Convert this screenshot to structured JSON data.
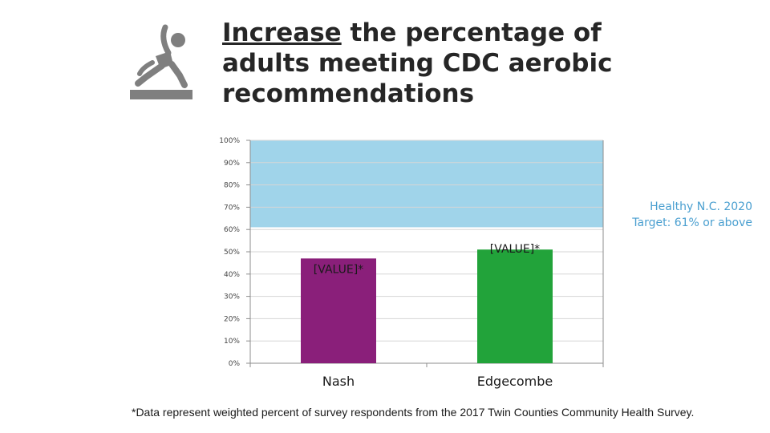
{
  "title": {
    "emphasis": "Increase",
    "rest": " the percentage of adults meeting CDC aerobic recommendations"
  },
  "icon": "stretching-person-icon",
  "target_box": {
    "line1": "Healthy N.C. 2020",
    "line2": "Target: 61% or above",
    "color": "#a0d4ea"
  },
  "footnote": "*Data represent weighted percent of survey respondents from the 2017 Twin Counties Community Health Survey.",
  "chart_data": {
    "type": "bar",
    "categories": [
      "Nash",
      "Edgecombe"
    ],
    "values": [
      47,
      51
    ],
    "data_labels": [
      "[VALUE]*",
      "[VALUE]*"
    ],
    "colors": [
      "#8a1f7a",
      "#22a33a"
    ],
    "ylim": [
      0,
      100
    ],
    "yticks": [
      "0%",
      "10%",
      "20%",
      "30%",
      "40%",
      "50%",
      "60%",
      "70%",
      "80%",
      "90%",
      "100%"
    ],
    "target_band": [
      61,
      100
    ],
    "grid": true,
    "title": "",
    "xlabel": "",
    "ylabel": ""
  }
}
